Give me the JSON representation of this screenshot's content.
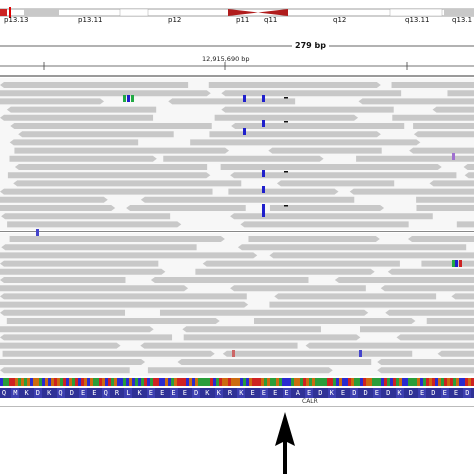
{
  "ideogram": {
    "bands": [
      "p13.13",
      "p13.11",
      "p12",
      "p11",
      "q11",
      "q12",
      "q13.11",
      "q13.1"
    ]
  },
  "ruler": {
    "span_label": "279 bp",
    "position_label": "12,915,690 bp"
  },
  "amino_acids": [
    "Q",
    "M",
    "K",
    "D",
    "K",
    "Q",
    "D",
    "E",
    "E",
    "Q",
    "R",
    "L",
    "K",
    "E",
    "E",
    "E",
    "E",
    "D",
    "K",
    "K",
    "R",
    "K",
    "E",
    "E",
    "E",
    "E",
    "A",
    "E",
    "D",
    "K",
    "E",
    "D",
    "D",
    "E",
    "D",
    "K",
    "D",
    "E",
    "D",
    "E",
    "E",
    "D"
  ],
  "gene": "CALR",
  "colors": {
    "read": "#c8c8c8",
    "track_bg": "#f7f7f7",
    "insertion": "#1f1fcc",
    "centromere": "#b01c1c",
    "aa_bg": "#2f3196"
  },
  "icons": {
    "arrow": "up-arrow-icon"
  }
}
